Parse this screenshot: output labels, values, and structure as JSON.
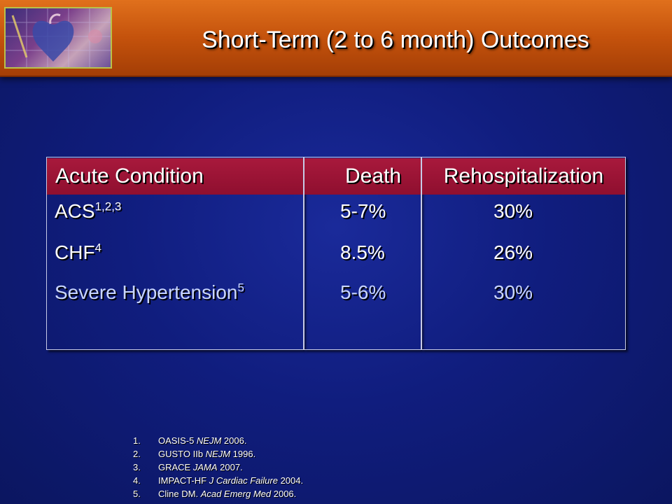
{
  "title": "Short-Term (2 to 6 month) Outcomes",
  "table": {
    "headers": [
      "Acute Condition",
      "Death",
      "Rehospitalization"
    ],
    "rows": [
      {
        "condition": "ACS",
        "sup": "1,2,3",
        "death": "5-7%",
        "rehosp": "30%"
      },
      {
        "condition": "CHF",
        "sup": "4",
        "death": "8.5%",
        "rehosp": "26%"
      },
      {
        "condition": "Severe Hypertension",
        "sup": "5",
        "death": "5-6%",
        "rehosp": "30%"
      }
    ]
  },
  "references": [
    {
      "num": "1.",
      "pre": "OASIS-5 ",
      "journal": "NEJM",
      "post": " 2006."
    },
    {
      "num": "2.",
      "pre": "GUSTO IIb ",
      "journal": "NEJM",
      "post": " 1996."
    },
    {
      "num": "3.",
      "pre": "GRACE ",
      "journal": "JAMA",
      "post": " 2007."
    },
    {
      "num": "4.",
      "pre": "IMPACT-HF ",
      "journal": "J Cardiac Failure",
      "post": " 2004."
    },
    {
      "num": "5.",
      "pre": "Cline DM. ",
      "journal": "Acad Emerg Med",
      "post": " 2006."
    }
  ],
  "colors": {
    "background": "#101d7e",
    "header_bar": "#c4520c",
    "table_header": "#a8193c"
  },
  "icons": {
    "logo": "heart-anatomy-logo"
  }
}
